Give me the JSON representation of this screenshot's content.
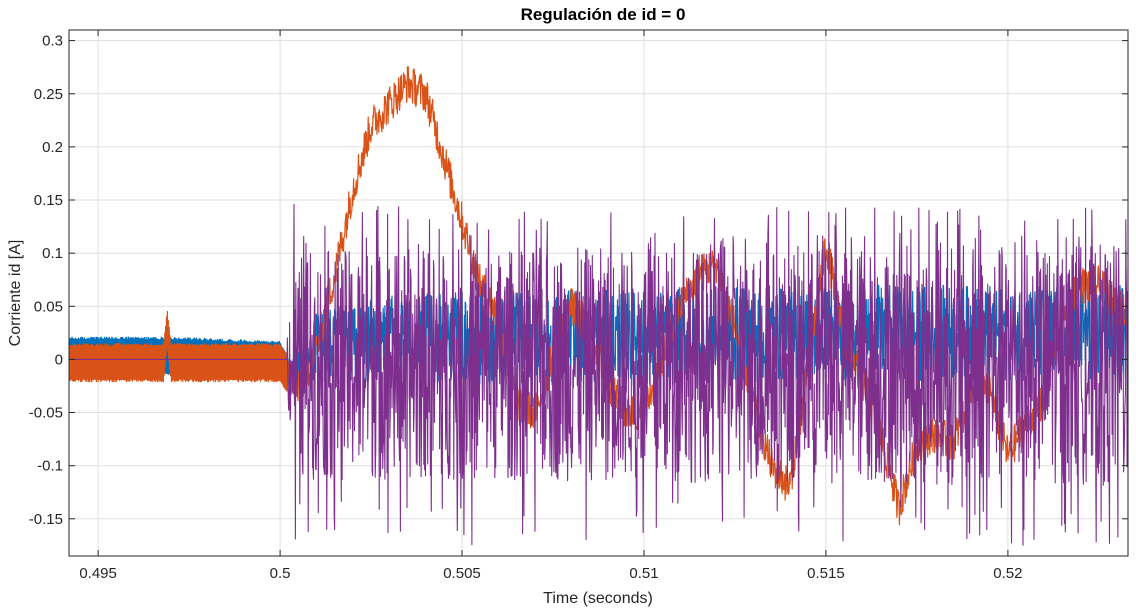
{
  "chart_data": {
    "type": "line",
    "title": "Regulación de id = 0",
    "xlabel": "Time (seconds)",
    "ylabel": "Corriente id [A]",
    "xlim": [
      0.4942,
      0.5233
    ],
    "ylim": [
      -0.185,
      0.31
    ],
    "grid": true,
    "legend": "none",
    "x_ticks": [
      0.495,
      0.5,
      0.505,
      0.51,
      0.515,
      0.52
    ],
    "x_tick_labels": [
      "0.495",
      "0.5",
      "0.505",
      "0.51",
      "0.515",
      "0.52"
    ],
    "y_ticks": [
      -0.15,
      -0.1,
      -0.05,
      0,
      0.05,
      0.1,
      0.15,
      0.2,
      0.25,
      0.3
    ],
    "y_tick_labels": [
      "-0.15",
      "-0.1",
      "-0.05",
      "0",
      "0.05",
      "0.1",
      "0.15",
      "0.2",
      "0.25",
      "0.3"
    ],
    "series": [
      {
        "name": "blue",
        "color": "#0072BD",
        "x": [
          0.4942,
          0.497,
          0.5,
          0.5003,
          0.501,
          0.503,
          0.506,
          0.51,
          0.515,
          0.52,
          0.5233
        ],
        "center": [
          0.003,
          0.003,
          0.003,
          -0.02,
          0.01,
          0.02,
          0.02,
          0.02,
          0.025,
          0.025,
          0.025
        ],
        "amp": [
          0.018,
          0.018,
          0.014,
          0.015,
          0.035,
          0.04,
          0.045,
          0.045,
          0.045,
          0.045,
          0.045
        ]
      },
      {
        "name": "orange",
        "color": "#D95319",
        "x": [
          0.4942,
          0.4968,
          0.4969,
          0.497,
          0.5,
          0.5005,
          0.501,
          0.5015,
          0.502,
          0.5025,
          0.503,
          0.5035,
          0.504,
          0.5045,
          0.505,
          0.5055,
          0.506,
          0.5065,
          0.507,
          0.5075,
          0.508,
          0.5085,
          0.509,
          0.5095,
          0.51,
          0.5105,
          0.511,
          0.5115,
          0.512,
          0.5125,
          0.513,
          0.5135,
          0.514,
          0.5145,
          0.515,
          0.5155,
          0.516,
          0.5165,
          0.517,
          0.5175,
          0.518,
          0.5185,
          0.519,
          0.5195,
          0.52,
          0.5205,
          0.521,
          0.5215,
          0.522,
          0.5225,
          0.523,
          0.5233
        ],
        "center": [
          -0.003,
          -0.003,
          0.03,
          -0.003,
          -0.003,
          -0.03,
          0.01,
          0.08,
          0.16,
          0.22,
          0.24,
          0.26,
          0.25,
          0.19,
          0.13,
          0.07,
          0.04,
          -0.04,
          -0.05,
          0.0,
          0.05,
          0.03,
          -0.02,
          -0.05,
          -0.05,
          0.0,
          0.05,
          0.08,
          0.09,
          0.03,
          -0.04,
          -0.1,
          -0.12,
          -0.01,
          0.11,
          0.02,
          -0.02,
          -0.07,
          -0.14,
          -0.08,
          -0.07,
          -0.08,
          -0.03,
          -0.03,
          -0.09,
          -0.06,
          -0.04,
          0.05,
          0.07,
          0.07,
          0.05,
          0.04
        ],
        "amp": 0.018
      },
      {
        "name": "purple",
        "color": "#7E2F8E",
        "x": [
          0.4942,
          0.5,
          0.5003,
          0.5006,
          0.5233
        ],
        "center": [
          0.0,
          0.0,
          0.0,
          -0.005,
          -0.005
        ],
        "amp": [
          0.0,
          0.0,
          0.06,
          0.09,
          0.095
        ],
        "peak_max": 0.15,
        "peak_min": -0.17
      }
    ]
  }
}
